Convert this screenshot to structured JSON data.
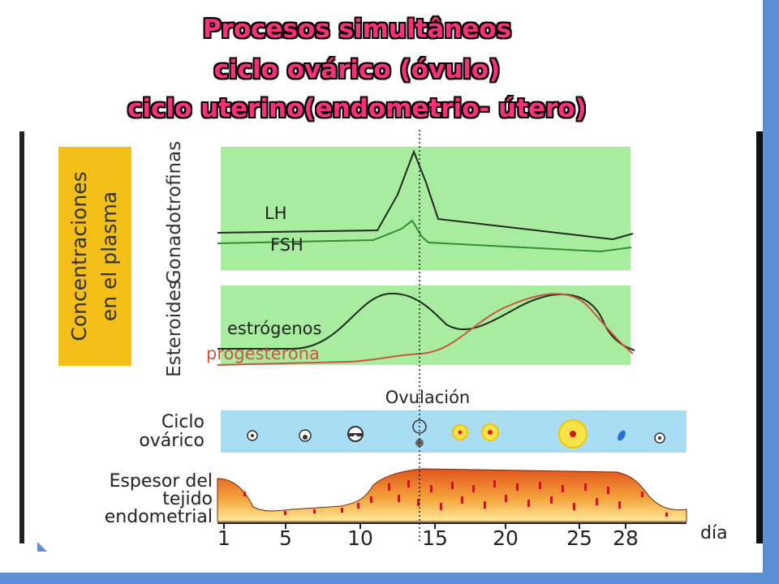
{
  "title": {
    "line1": "Procesos simultâneos",
    "line2": "ciclo ovárico (óvulo)",
    "line3": "ciclo uterino(endometrio- útero)"
  },
  "yellow_box": {
    "line1": "Concentraciones",
    "line2": "en el plasma"
  },
  "gonadotrofinas": {
    "axis_label": "Gonadotrofinas",
    "lh_label": "LH",
    "fsh_label": "FSH"
  },
  "esteroides": {
    "axis_label": "Esteroides",
    "estrogen_label": "estrógenos",
    "progesterone_label": "progesterona"
  },
  "ovulation_label": "Ovulación",
  "ovarian_cycle": {
    "line1": "Ciclo",
    "line2": "ovárico"
  },
  "endometrium": {
    "line1": "Espesor del",
    "line2": "tejido",
    "line3": "endometrial"
  },
  "day_axis": {
    "unit": "día",
    "ticks": [
      "1",
      "5",
      "10",
      "15",
      "20",
      "25",
      "28"
    ]
  },
  "colors": {
    "green_panel": "#a8eca0",
    "blue_band": "#a9ddf3",
    "yellow_box": "#f5bf1a",
    "title_pink": "#ff2f7c",
    "progesterone_line": "#c9573f",
    "frame_blue": "#5b8fd4"
  }
}
